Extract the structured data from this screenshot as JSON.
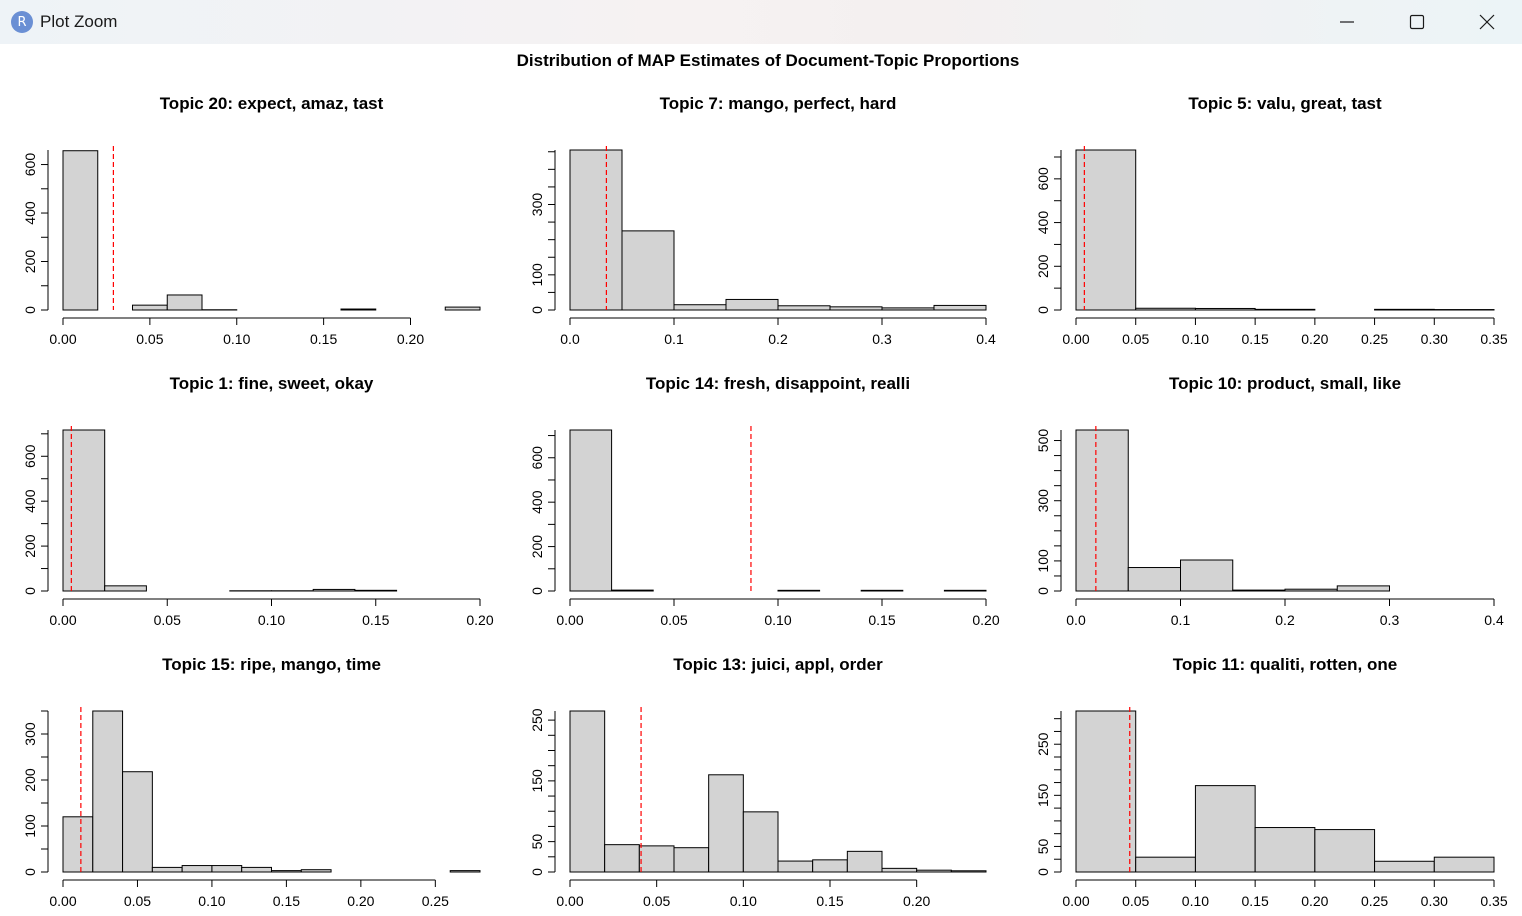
{
  "window": {
    "title": "Plot Zoom",
    "icon_letter": "R",
    "icon_name": "r-app-icon",
    "controls": [
      "minimize-icon",
      "maximize-icon",
      "close-icon"
    ]
  },
  "figure": {
    "title": "Distribution of MAP Estimates of Document-Topic Proportions",
    "bar_fill": "#d3d3d3",
    "mean_line_color": "#ff0000"
  },
  "chart_data": [
    {
      "type": "bar",
      "title": "Topic 20: expect, amaz, tast",
      "bin_edges": [
        0.0,
        0.02,
        0.04,
        0.06,
        0.08,
        0.1,
        0.12,
        0.14,
        0.16,
        0.18,
        0.2,
        0.22,
        0.24
      ],
      "values": [
        657,
        0,
        20,
        62,
        1,
        0,
        0,
        0,
        4,
        0,
        0,
        12
      ],
      "mean_line": 0.029,
      "xticks": [
        "0.00",
        "0.05",
        "0.10",
        "0.15",
        "0.20"
      ],
      "xtick_values": [
        0,
        0.05,
        0.1,
        0.15,
        0.2
      ],
      "xlim": [
        0.0,
        0.24
      ],
      "yticks": [
        "0",
        "200",
        "400",
        "600"
      ],
      "ytick_values": [
        0,
        200,
        400,
        600
      ],
      "ylim": [
        0,
        660
      ]
    },
    {
      "type": "bar",
      "title": "Topic 7: mango, perfect, hard",
      "bin_edges": [
        0.0,
        0.05,
        0.1,
        0.15,
        0.2,
        0.25,
        0.3,
        0.35,
        0.4
      ],
      "values": [
        455,
        225,
        15,
        30,
        12,
        9,
        6,
        13
      ],
      "mean_line": 0.035,
      "xticks": [
        "0.0",
        "0.1",
        "0.2",
        "0.3",
        "0.4"
      ],
      "xtick_values": [
        0,
        0.1,
        0.2,
        0.3,
        0.4
      ],
      "xlim": [
        0.0,
        0.4
      ],
      "yticks": [
        "0",
        "100",
        "300"
      ],
      "ytick_values": [
        0,
        100,
        300
      ],
      "ylim": [
        0,
        455
      ]
    },
    {
      "type": "bar",
      "title": "Topic 5: valu, great, tast",
      "bin_edges": [
        0.0,
        0.05,
        0.1,
        0.15,
        0.2,
        0.25,
        0.3,
        0.35
      ],
      "values": [
        732,
        8,
        7,
        3,
        0,
        3,
        2
      ],
      "mean_line": 0.007,
      "xticks": [
        "0.00",
        "0.05",
        "0.10",
        "0.15",
        "0.20",
        "0.25",
        "0.30",
        "0.35"
      ],
      "xtick_values": [
        0,
        0.05,
        0.1,
        0.15,
        0.2,
        0.25,
        0.3,
        0.35
      ],
      "xlim": [
        0.0,
        0.35
      ],
      "yticks": [
        "0",
        "200",
        "400",
        "600"
      ],
      "ytick_values": [
        0,
        200,
        400,
        600
      ],
      "ylim": [
        0,
        732
      ]
    },
    {
      "type": "bar",
      "title": "Topic 1: fine, sweet, okay",
      "bin_edges": [
        0.0,
        0.02,
        0.04,
        0.06,
        0.08,
        0.1,
        0.12,
        0.14,
        0.16,
        0.18,
        0.2
      ],
      "values": [
        717,
        23,
        0,
        0,
        1,
        1,
        7,
        3,
        0,
        0
      ],
      "mean_line": 0.004,
      "xticks": [
        "0.00",
        "0.05",
        "0.10",
        "0.15",
        "0.20"
      ],
      "xtick_values": [
        0,
        0.05,
        0.1,
        0.15,
        0.2
      ],
      "xlim": [
        0.0,
        0.2
      ],
      "yticks": [
        "0",
        "200",
        "400",
        "600"
      ],
      "ytick_values": [
        0,
        200,
        400,
        600
      ],
      "ylim": [
        0,
        717
      ]
    },
    {
      "type": "bar",
      "title": "Topic 14: fresh, disappoint, realli",
      "bin_edges": [
        0.0,
        0.02,
        0.04,
        0.06,
        0.08,
        0.1,
        0.12,
        0.14,
        0.16,
        0.18,
        0.2
      ],
      "values": [
        725,
        4,
        0,
        0,
        0,
        3,
        0,
        3,
        0,
        3
      ],
      "mean_line": 0.087,
      "xticks": [
        "0.00",
        "0.05",
        "0.10",
        "0.15",
        "0.20"
      ],
      "xtick_values": [
        0,
        0.05,
        0.1,
        0.15,
        0.2
      ],
      "xlim": [
        0.0,
        0.2
      ],
      "yticks": [
        "0",
        "200",
        "400",
        "600"
      ],
      "ytick_values": [
        0,
        200,
        400,
        600
      ],
      "ylim": [
        0,
        725
      ]
    },
    {
      "type": "bar",
      "title": "Topic 10: product, small, like",
      "bin_edges": [
        0.0,
        0.05,
        0.1,
        0.15,
        0.2,
        0.25,
        0.3,
        0.35,
        0.4
      ],
      "values": [
        535,
        78,
        103,
        3,
        6,
        17,
        0,
        0
      ],
      "mean_line": 0.019,
      "xticks": [
        "0.0",
        "0.1",
        "0.2",
        "0.3",
        "0.4"
      ],
      "xtick_values": [
        0,
        0.1,
        0.2,
        0.3,
        0.4
      ],
      "xlim": [
        0.0,
        0.4
      ],
      "yticks": [
        "0",
        "100",
        "300",
        "500"
      ],
      "ytick_values": [
        0,
        100,
        300,
        500
      ],
      "ylim": [
        0,
        535
      ]
    },
    {
      "type": "bar",
      "title": "Topic 15: ripe, mango, time",
      "bin_edges": [
        0.0,
        0.02,
        0.04,
        0.06,
        0.08,
        0.1,
        0.12,
        0.14,
        0.16,
        0.18,
        0.2,
        0.22,
        0.24,
        0.26,
        0.28
      ],
      "values": [
        120,
        350,
        218,
        10,
        14,
        14,
        10,
        3,
        5,
        0,
        0,
        0,
        0,
        3
      ],
      "mean_line": 0.012,
      "xticks": [
        "0.00",
        "0.05",
        "0.10",
        "0.15",
        "0.20",
        "0.25"
      ],
      "xtick_values": [
        0,
        0.05,
        0.1,
        0.15,
        0.2,
        0.25
      ],
      "xlim": [
        0.0,
        0.28
      ],
      "yticks": [
        "0",
        "100",
        "200",
        "300"
      ],
      "ytick_values": [
        0,
        100,
        200,
        300
      ],
      "ylim": [
        0,
        350
      ]
    },
    {
      "type": "bar",
      "title": "Topic 13: juici, appl, order",
      "bin_edges": [
        0.0,
        0.02,
        0.04,
        0.06,
        0.08,
        0.1,
        0.12,
        0.14,
        0.16,
        0.18,
        0.2,
        0.22,
        0.24
      ],
      "values": [
        265,
        45,
        43,
        40,
        160,
        99,
        18,
        20,
        34,
        6,
        3,
        2
      ],
      "mean_line": 0.041,
      "xticks": [
        "0.00",
        "0.05",
        "0.10",
        "0.15",
        "0.20"
      ],
      "xtick_values": [
        0,
        0.05,
        0.1,
        0.15,
        0.2
      ],
      "xlim": [
        0.0,
        0.24
      ],
      "yticks": [
        "0",
        "50",
        "150",
        "250"
      ],
      "ytick_values": [
        0,
        50,
        150,
        250
      ],
      "ylim": [
        0,
        265
      ]
    },
    {
      "type": "bar",
      "title": "Topic 11: qualiti, rotten, one",
      "bin_edges": [
        0.0,
        0.05,
        0.1,
        0.15,
        0.2,
        0.25,
        0.3,
        0.35
      ],
      "values": [
        315,
        29,
        169,
        87,
        83,
        21,
        29
      ],
      "mean_line": 0.045,
      "xticks": [
        "0.00",
        "0.05",
        "0.10",
        "0.15",
        "0.20",
        "0.25",
        "0.30",
        "0.35"
      ],
      "xtick_values": [
        0,
        0.05,
        0.1,
        0.15,
        0.2,
        0.25,
        0.3,
        0.35
      ],
      "xlim": [
        0.0,
        0.35
      ],
      "yticks": [
        "0",
        "50",
        "150",
        "250"
      ],
      "ytick_values": [
        0,
        50,
        150,
        250
      ],
      "ylim": [
        0,
        315
      ]
    }
  ]
}
